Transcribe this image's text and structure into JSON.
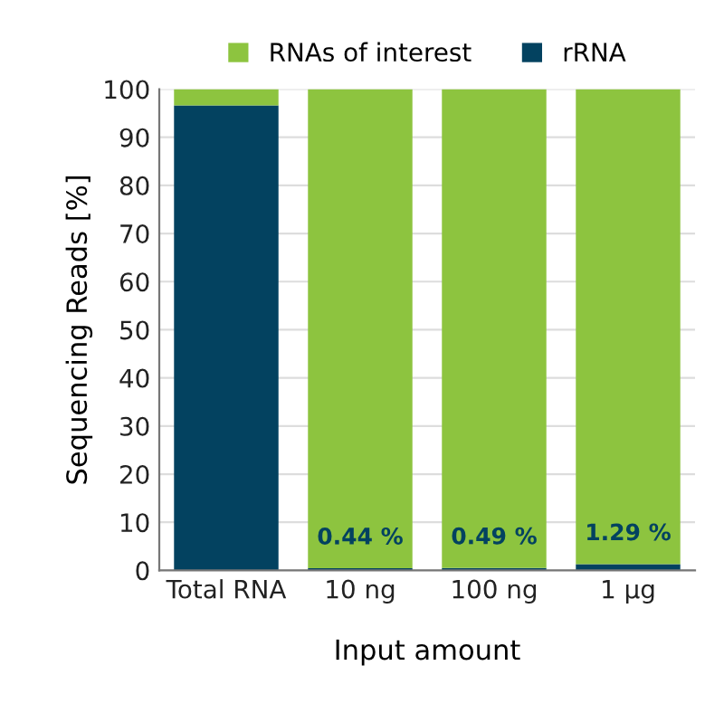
{
  "chart_data": {
    "type": "bar",
    "stacked": true,
    "xlabel": "Input amount",
    "ylabel": "Sequencing Reads [%]",
    "categories": [
      "Total RNA",
      "10 ng",
      "100 ng",
      "1 µg"
    ],
    "series": [
      {
        "name": "rRNA",
        "color": "#034260",
        "values": [
          96.6,
          0.44,
          0.49,
          1.29
        ],
        "value_labels": [
          null,
          "0.44 %",
          "0.49 %",
          "1.29 %"
        ]
      },
      {
        "name": "RNAs of interest",
        "color": "#8dc43f",
        "values": [
          3.4,
          99.56,
          99.51,
          98.71
        ]
      }
    ],
    "ylim": [
      0,
      100
    ],
    "yticks": [
      0,
      10,
      20,
      30,
      40,
      50,
      60,
      70,
      80,
      90,
      100
    ],
    "grid": "y",
    "legend": "top"
  }
}
